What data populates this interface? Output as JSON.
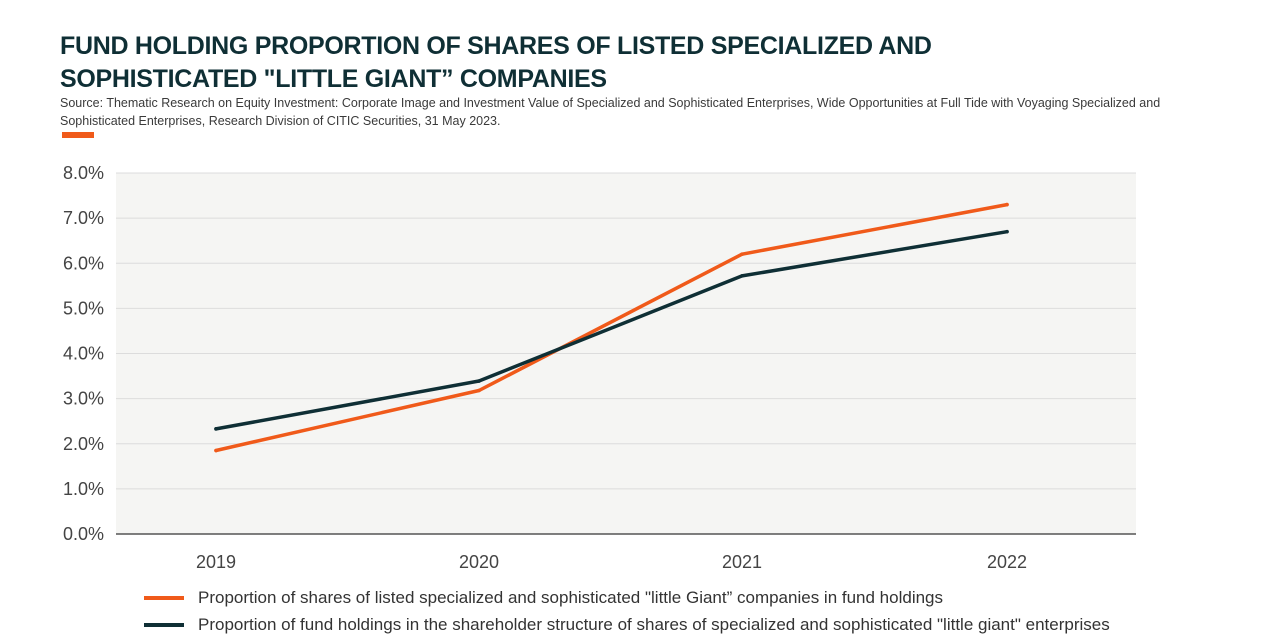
{
  "header": {
    "title": "FUND HOLDING PROPORTION OF SHARES OF LISTED SPECIALIZED AND SOPHISTICATED \"LITTLE GIANT” COMPANIES",
    "source": "Source: Thematic Research on Equity Investment: Corporate Image and Investment Value of Specialized and Sophisticated Enterprises, Wide Opportunities at Full Tide with Voyaging Specialized and Sophisticated Enterprises, Research Division of CITIC Securities, 31 May 2023."
  },
  "colors": {
    "accent": "#f05a1a",
    "dark": "#0f2f35",
    "plot_bg": "#f5f5f3",
    "grid": "#dcdcdc"
  },
  "chart_data": {
    "type": "line",
    "title": "FUND HOLDING PROPORTION OF SHARES OF LISTED SPECIALIZED AND SOPHISTICATED \"LITTLE GIANT” COMPANIES",
    "xlabel": "",
    "ylabel": "",
    "categories": [
      "2019",
      "2020",
      "2021",
      "2022"
    ],
    "ylim": [
      0,
      8
    ],
    "y_ticks": [
      "0.0%",
      "1.0%",
      "2.0%",
      "3.0%",
      "4.0%",
      "5.0%",
      "6.0%",
      "7.0%",
      "8.0%"
    ],
    "grid": true,
    "legend_position": "bottom",
    "series": [
      {
        "name": "Proportion of shares of listed specialized and sophisticated \"little Giant” companies in fund holdings",
        "values": [
          1.85,
          3.18,
          6.2,
          7.3
        ],
        "color": "#f05a1a"
      },
      {
        "name": "Proportion of fund holdings in the shareholder structure of shares of specialized and sophisticated \"little giant\" enterprises",
        "values": [
          2.33,
          3.39,
          5.72,
          6.7
        ],
        "color": "#0f2f35"
      }
    ]
  }
}
